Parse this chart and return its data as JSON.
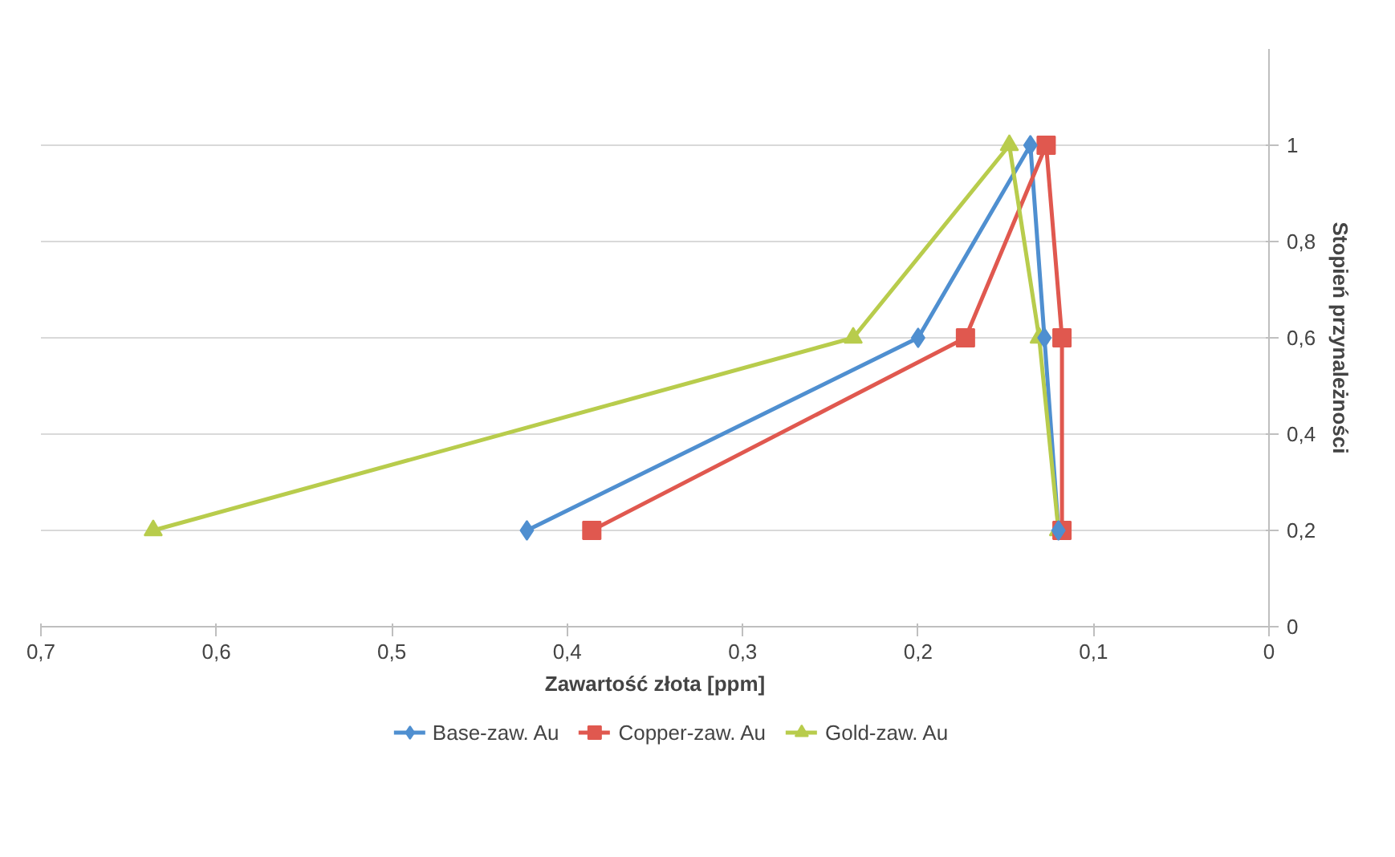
{
  "chart_data": {
    "type": "line",
    "xlabel": "Zawartość złota [ppm]",
    "ylabel": "Stopień przynależności",
    "xlim": [
      0.7,
      0
    ],
    "xticks": [
      {
        "value": 0.7,
        "label": "0,7"
      },
      {
        "value": 0.6,
        "label": "0,6"
      },
      {
        "value": 0.5,
        "label": "0,5"
      },
      {
        "value": 0.4,
        "label": "0,4"
      },
      {
        "value": 0.3,
        "label": "0,3"
      },
      {
        "value": 0.2,
        "label": "0,2"
      },
      {
        "value": 0.1,
        "label": "0,1"
      },
      {
        "value": 0,
        "label": "0"
      }
    ],
    "ylim": [
      0,
      1.2
    ],
    "yticks": [
      {
        "value": 0,
        "label": "0"
      },
      {
        "value": 0.2,
        "label": "0,2"
      },
      {
        "value": 0.4,
        "label": "0,4"
      },
      {
        "value": 0.6,
        "label": "0,6"
      },
      {
        "value": 0.8,
        "label": "0,8"
      },
      {
        "value": 1,
        "label": "1"
      }
    ],
    "grid": "y",
    "legend": "bottom",
    "line_style": "solid",
    "series": [
      {
        "name": "Base-zaw. Au",
        "color": "#4f8fd0",
        "marker": "diamond",
        "x": [
          0.423,
          0.2,
          0.136,
          0.128,
          0.12
        ],
        "values": [
          0.2,
          0.6,
          1,
          0.6,
          0.2
        ]
      },
      {
        "name": "Copper-zaw. Au",
        "color": "#e0584f",
        "marker": "square",
        "x": [
          0.386,
          0.173,
          0.127,
          0.118,
          0.118
        ],
        "values": [
          0.2,
          0.6,
          1,
          0.6,
          0.2
        ]
      },
      {
        "name": "Gold-zaw. Au",
        "color": "#b8cc4c",
        "marker": "triangle",
        "x": [
          0.636,
          0.237,
          0.148,
          0.131,
          0.12
        ],
        "values": [
          0.2,
          0.6,
          1,
          0.6,
          0.2
        ]
      }
    ]
  }
}
